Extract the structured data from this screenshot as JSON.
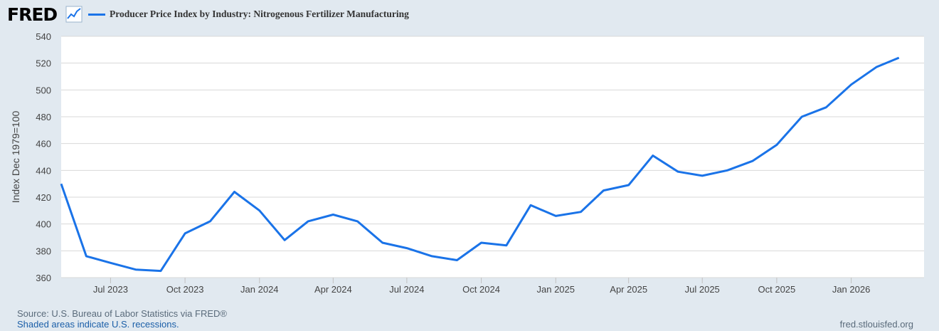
{
  "header": {
    "logo": "FRED",
    "logo_icon": "trend-chart-icon",
    "series_title": "Producer Price Index by Industry: Nitrogenous Fertilizer Manufacturing",
    "series_color": "#1a73e8"
  },
  "chart_data": {
    "type": "line",
    "title": "Producer Price Index by Industry: Nitrogenous Fertilizer Manufacturing",
    "ylabel": "Index Dec 1979=100",
    "xlabel": "",
    "ylim": [
      360,
      540
    ],
    "yticks": [
      360,
      380,
      400,
      420,
      440,
      460,
      480,
      500,
      520,
      540
    ],
    "xlim": [
      "2023-05-01",
      "2026-04-01"
    ],
    "xticks": [
      {
        "date": "2023-07-01",
        "label": "Jul 2023"
      },
      {
        "date": "2023-10-01",
        "label": "Oct 2023"
      },
      {
        "date": "2024-01-01",
        "label": "Jan 2024"
      },
      {
        "date": "2024-04-01",
        "label": "Apr 2024"
      },
      {
        "date": "2024-07-01",
        "label": "Jul 2024"
      },
      {
        "date": "2024-10-01",
        "label": "Oct 2024"
      },
      {
        "date": "2025-01-01",
        "label": "Jan 2025"
      },
      {
        "date": "2025-04-01",
        "label": "Apr 2025"
      },
      {
        "date": "2025-07-01",
        "label": "Jul 2025"
      },
      {
        "date": "2025-10-01",
        "label": "Oct 2025"
      },
      {
        "date": "2026-01-01",
        "label": "Jan 2026"
      }
    ],
    "grid": true,
    "series": [
      {
        "name": "Producer Price Index by Industry: Nitrogenous Fertilizer Manufacturing",
        "color": "#1a73e8",
        "points": [
          {
            "x": "2023-05-01",
            "y": 430
          },
          {
            "x": "2023-06-01",
            "y": 376
          },
          {
            "x": "2023-07-01",
            "y": 371
          },
          {
            "x": "2023-08-01",
            "y": 366
          },
          {
            "x": "2023-09-01",
            "y": 365
          },
          {
            "x": "2023-10-01",
            "y": 393
          },
          {
            "x": "2023-11-01",
            "y": 402
          },
          {
            "x": "2023-12-01",
            "y": 424
          },
          {
            "x": "2024-01-01",
            "y": 410
          },
          {
            "x": "2024-02-01",
            "y": 388
          },
          {
            "x": "2024-03-01",
            "y": 402
          },
          {
            "x": "2024-04-01",
            "y": 407
          },
          {
            "x": "2024-05-01",
            "y": 402
          },
          {
            "x": "2024-06-01",
            "y": 386
          },
          {
            "x": "2024-07-01",
            "y": 382
          },
          {
            "x": "2024-08-01",
            "y": 376
          },
          {
            "x": "2024-09-01",
            "y": 373
          },
          {
            "x": "2024-10-01",
            "y": 386
          },
          {
            "x": "2024-11-01",
            "y": 384
          },
          {
            "x": "2024-12-01",
            "y": 414
          },
          {
            "x": "2025-01-01",
            "y": 406
          },
          {
            "x": "2025-02-01",
            "y": 409
          },
          {
            "x": "2025-03-01",
            "y": 425
          },
          {
            "x": "2025-04-01",
            "y": 429
          },
          {
            "x": "2025-05-01",
            "y": 451
          },
          {
            "x": "2025-06-01",
            "y": 439
          },
          {
            "x": "2025-07-01",
            "y": 436
          },
          {
            "x": "2025-08-01",
            "y": 440
          },
          {
            "x": "2025-09-01",
            "y": 447
          },
          {
            "x": "2025-10-01",
            "y": 459
          },
          {
            "x": "2025-11-01",
            "y": 480
          },
          {
            "x": "2025-12-01",
            "y": 487
          },
          {
            "x": "2026-01-01",
            "y": 504
          },
          {
            "x": "2026-02-01",
            "y": 517
          },
          {
            "x": "2026-03-01",
            "y": 524
          }
        ]
      }
    ]
  },
  "footer": {
    "source": "Source: U.S. Bureau of Labor Statistics via FRED®",
    "recessions_note": "Shaded areas indicate U.S. recessions.",
    "site": "fred.stlouisfed.org"
  }
}
